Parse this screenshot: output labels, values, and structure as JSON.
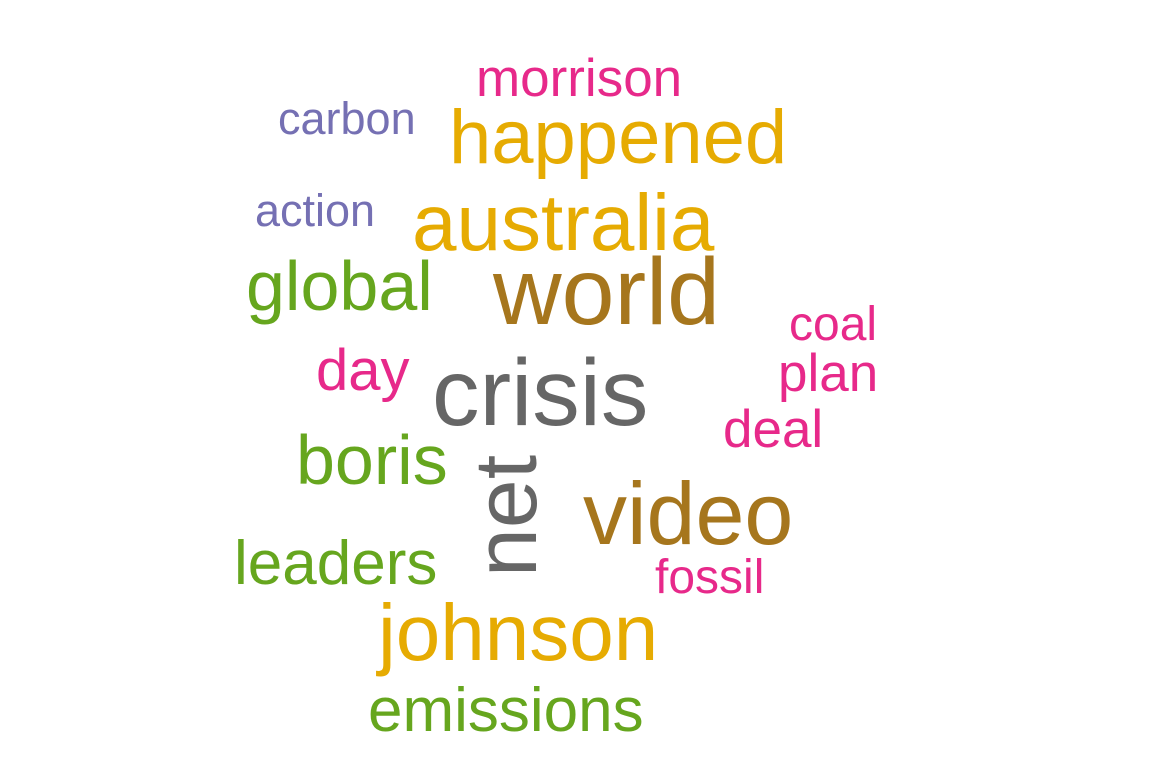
{
  "colors": {
    "dark_grey": "#666666",
    "ochre": "#A6761D",
    "gold": "#E6AB02",
    "green": "#66A61E",
    "magenta": "#E7298A",
    "purple": "#7570B3"
  },
  "words": [
    {
      "text": "crisis",
      "color": "#666666",
      "rank": 1
    },
    {
      "text": "net",
      "color": "#666666",
      "rank": 2,
      "rotated": true
    },
    {
      "text": "world",
      "color": "#A6761D",
      "rank": 3
    },
    {
      "text": "video",
      "color": "#A6761D",
      "rank": 4
    },
    {
      "text": "australia",
      "color": "#E6AB02",
      "rank": 5
    },
    {
      "text": "happened",
      "color": "#E6AB02",
      "rank": 6
    },
    {
      "text": "johnson",
      "color": "#E6AB02",
      "rank": 7
    },
    {
      "text": "global",
      "color": "#66A61E",
      "rank": 8
    },
    {
      "text": "boris",
      "color": "#66A61E",
      "rank": 9
    },
    {
      "text": "leaders",
      "color": "#66A61E",
      "rank": 10
    },
    {
      "text": "emissions",
      "color": "#66A61E",
      "rank": 11
    },
    {
      "text": "morrison",
      "color": "#E7298A",
      "rank": 12
    },
    {
      "text": "day",
      "color": "#E7298A",
      "rank": 13
    },
    {
      "text": "plan",
      "color": "#E7298A",
      "rank": 14
    },
    {
      "text": "deal",
      "color": "#E7298A",
      "rank": 15
    },
    {
      "text": "coal",
      "color": "#E7298A",
      "rank": 16
    },
    {
      "text": "fossil",
      "color": "#E7298A",
      "rank": 17
    },
    {
      "text": "carbon",
      "color": "#7570B3",
      "rank": 18
    },
    {
      "text": "action",
      "color": "#7570B3",
      "rank": 19
    }
  ]
}
